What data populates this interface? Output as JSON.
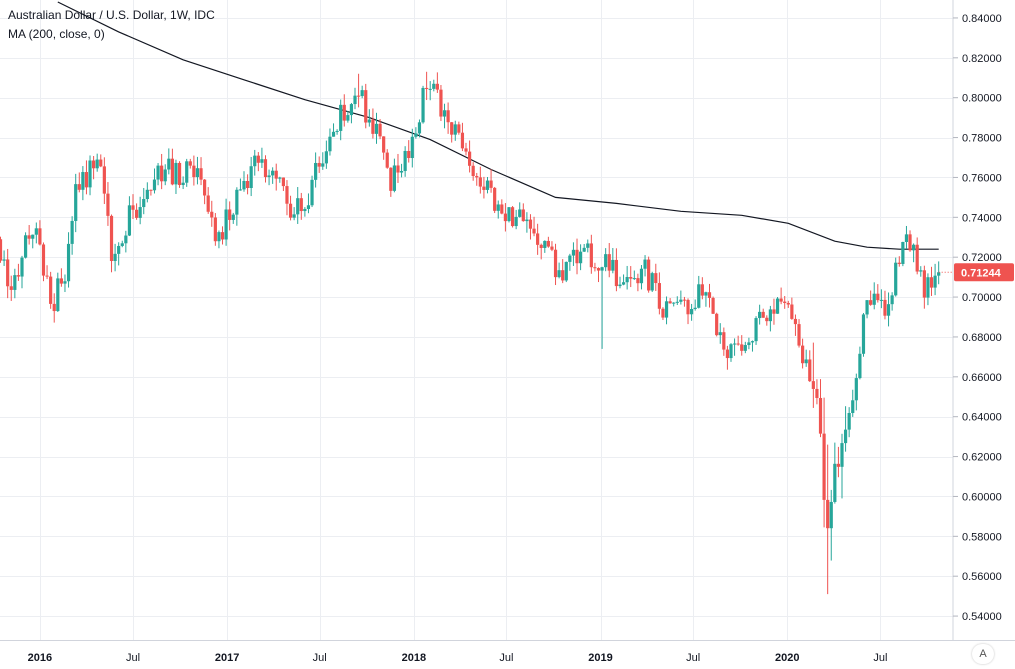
{
  "legend": {
    "title": "Australian Dollar / U.S. Dollar, 1W, IDC",
    "indicator": "MA (200, close, 0)"
  },
  "axis_mode_button": "A",
  "colors": {
    "up": "#26a69a",
    "down": "#ef5350",
    "ma": "#131722",
    "grid": "#eceef2",
    "text": "#131722",
    "price_tag": "#ef5350"
  },
  "chart_data": {
    "type": "candlestick",
    "timeframe": "1W",
    "x_tick_labels": [
      "2016",
      "Jul",
      "2017",
      "Jul",
      "2018",
      "Jul",
      "2019",
      "Jul",
      "2020",
      "Jul"
    ],
    "x_tick_dates": [
      "2016-01-01",
      "2016-07-01",
      "2017-01-01",
      "2017-07-01",
      "2018-01-01",
      "2018-07-01",
      "2019-01-01",
      "2019-07-01",
      "2020-01-01",
      "2020-07-01"
    ],
    "x_range": [
      "2015-10-15",
      "2020-11-20"
    ],
    "y_range": [
      0.528,
      0.849
    ],
    "y_ticks": [
      0.54,
      0.56,
      0.58,
      0.6,
      0.62,
      0.64,
      0.66,
      0.68,
      0.7,
      0.72,
      0.74,
      0.76,
      0.78,
      0.8,
      0.82,
      0.84
    ],
    "y_tick_labels": [
      "0.54000",
      "0.56000",
      "0.58000",
      "0.60000",
      "0.62000",
      "0.64000",
      "0.66000",
      "0.68000",
      "0.70000",
      "0.72000",
      "0.74000",
      "0.76000",
      "0.78000",
      "0.80000",
      "0.82000",
      "0.84000"
    ],
    "last_price": 0.71244,
    "last_price_label": "0.71244",
    "close_path": [
      [
        "2015-10-16",
        0.725
      ],
      [
        "2015-11-06",
        0.705
      ],
      [
        "2015-12-04",
        0.728
      ],
      [
        "2015-12-31",
        0.728
      ],
      [
        "2016-01-22",
        0.692
      ],
      [
        "2016-02-19",
        0.714
      ],
      [
        "2016-03-11",
        0.75
      ],
      [
        "2016-04-22",
        0.772
      ],
      [
        "2016-05-20",
        0.722
      ],
      [
        "2016-06-24",
        0.74
      ],
      [
        "2016-07-22",
        0.752
      ],
      [
        "2016-08-19",
        0.765
      ],
      [
        "2016-09-23",
        0.762
      ],
      [
        "2016-11-04",
        0.767
      ],
      [
        "2016-12-16",
        0.728
      ],
      [
        "2017-01-13",
        0.748
      ],
      [
        "2017-02-24",
        0.767
      ],
      [
        "2017-03-24",
        0.763
      ],
      [
        "2017-04-28",
        0.748
      ],
      [
        "2017-05-26",
        0.743
      ],
      [
        "2017-07-14",
        0.778
      ],
      [
        "2017-08-11",
        0.79
      ],
      [
        "2017-09-15",
        0.802
      ],
      [
        "2017-10-20",
        0.782
      ],
      [
        "2017-11-17",
        0.758
      ],
      [
        "2017-12-22",
        0.772
      ],
      [
        "2018-01-26",
        0.809
      ],
      [
        "2018-03-16",
        0.784
      ],
      [
        "2018-04-20",
        0.764
      ],
      [
        "2018-05-25",
        0.755
      ],
      [
        "2018-06-29",
        0.74
      ],
      [
        "2018-08-24",
        0.734
      ],
      [
        "2018-10-12",
        0.712
      ],
      [
        "2018-11-23",
        0.722
      ],
      [
        "2019-01-04",
        0.716
      ],
      [
        "2019-02-08",
        0.709
      ],
      [
        "2019-03-29",
        0.712
      ],
      [
        "2019-05-17",
        0.69
      ],
      [
        "2019-07-19",
        0.703
      ],
      [
        "2019-08-30",
        0.674
      ],
      [
        "2019-10-25",
        0.683
      ],
      [
        "2019-12-27",
        0.7
      ],
      [
        "2020-01-31",
        0.671
      ],
      [
        "2020-02-28",
        0.654
      ],
      [
        "2020-03-20",
        0.58
      ],
      [
        "2020-04-03",
        0.614
      ],
      [
        "2020-05-01",
        0.645
      ],
      [
        "2020-06-05",
        0.695
      ],
      [
        "2020-07-10",
        0.697
      ],
      [
        "2020-08-07",
        0.717
      ],
      [
        "2020-08-28",
        0.729
      ],
      [
        "2020-09-04",
        0.725
      ],
      [
        "2020-09-25",
        0.704
      ],
      [
        "2020-10-23",
        0.712
      ]
    ],
    "ma": {
      "name": "MA (200, close, 0)",
      "points": [
        [
          "2016-02-05",
          0.848
        ],
        [
          "2016-06-03",
          0.833
        ],
        [
          "2016-10-07",
          0.819
        ],
        [
          "2017-02-03",
          0.809
        ],
        [
          "2017-06-02",
          0.799
        ],
        [
          "2017-10-06",
          0.79
        ],
        [
          "2018-02-02",
          0.779
        ],
        [
          "2018-06-01",
          0.764
        ],
        [
          "2018-10-05",
          0.75
        ],
        [
          "2019-02-01",
          0.747
        ],
        [
          "2019-06-07",
          0.743
        ],
        [
          "2019-10-04",
          0.741
        ],
        [
          "2020-01-03",
          0.737
        ],
        [
          "2020-04-03",
          0.728
        ],
        [
          "2020-06-05",
          0.725
        ],
        [
          "2020-08-07",
          0.724
        ],
        [
          "2020-10-23",
          0.724
        ]
      ]
    },
    "grid": true
  }
}
